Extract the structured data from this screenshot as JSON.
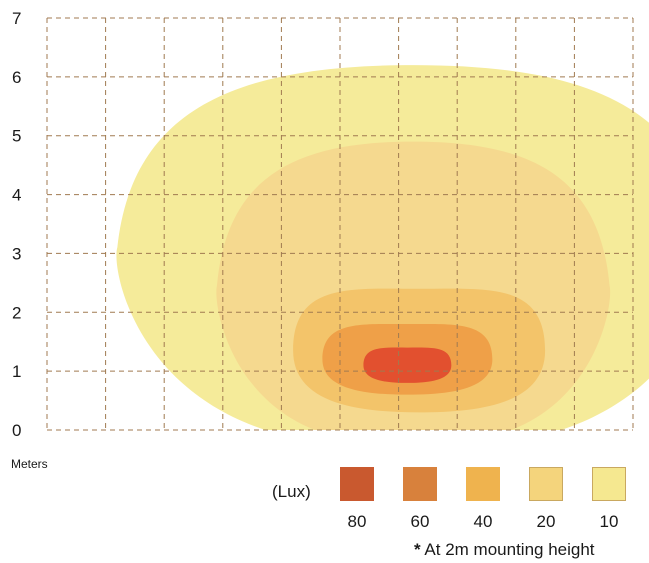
{
  "chart_data": {
    "type": "heatmap",
    "title": "",
    "xlabel": "",
    "ylabel": "",
    "units_label": "Meters",
    "y_ticks": [
      "0",
      "1",
      "2",
      "3",
      "4",
      "5",
      "6",
      "7"
    ],
    "ylim": [
      0,
      7
    ],
    "x_range_m": [
      0,
      10
    ],
    "grid": true,
    "legend": {
      "title": "(Lux)",
      "entries": [
        {
          "label": "80",
          "color": "#c9592f",
          "fill": "#e2502f"
        },
        {
          "label": "60",
          "color": "#d8813c",
          "fill": "#efa048"
        },
        {
          "label": "40",
          "color": "#efb34e",
          "fill": "#f3c46a"
        },
        {
          "label": "20",
          "color": "#f4d47c",
          "fill": "#f5d98f"
        },
        {
          "label": "10",
          "color": "#f5e890",
          "fill": "#f5eb9a"
        }
      ]
    },
    "contours": [
      {
        "lux": 10,
        "x_min": 1.2,
        "x_max": 11.3,
        "y_min": 0,
        "y_max": 6.2,
        "peak_x": 6.0
      },
      {
        "lux": 20,
        "x_min": 2.9,
        "x_max": 9.6,
        "y_min": 0,
        "y_max": 4.9,
        "peak_x": 6.0
      },
      {
        "lux": 40,
        "x_min": 4.2,
        "x_max": 8.5,
        "y_min": 0.3,
        "y_max": 2.4,
        "peak_x": 6.0
      },
      {
        "lux": 60,
        "x_min": 4.7,
        "x_max": 7.6,
        "y_min": 0.6,
        "y_max": 1.8,
        "peak_x": 6.0
      },
      {
        "lux": 80,
        "x_min": 5.4,
        "x_max": 6.9,
        "y_min": 0.8,
        "y_max": 1.4,
        "peak_x": 6.0
      }
    ],
    "footnote_mark": "*",
    "footnote": "At 2m mounting height"
  }
}
